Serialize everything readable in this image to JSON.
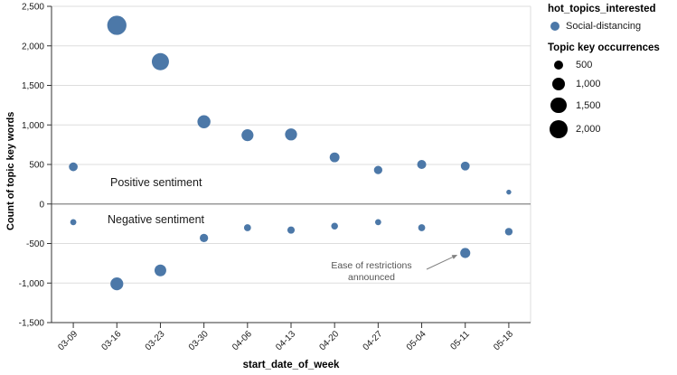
{
  "chart_data": {
    "type": "scatter",
    "title": "",
    "xlabel": "start_date_of_week",
    "ylabel": "Count of topic key words",
    "x": [
      "03-09",
      "03-16",
      "03-23",
      "03-30",
      "04-06",
      "04-13",
      "04-20",
      "04-27",
      "05-04",
      "05-11",
      "05-18"
    ],
    "series": [
      {
        "name": "Social-distancing positive sentiment",
        "values": [
          470,
          2260,
          1800,
          1040,
          870,
          880,
          590,
          430,
          500,
          480,
          150
        ]
      },
      {
        "name": "Social-distancing negative sentiment",
        "values": [
          -230,
          -1010,
          -840,
          -430,
          -300,
          -330,
          -280,
          -230,
          -300,
          -620,
          -350
        ]
      }
    ],
    "size_encoding": {
      "title": "Topic key occurrences",
      "max_value": 2000,
      "max_radius_px": 10
    },
    "ylim": [
      -1500,
      2500
    ],
    "y_ticks": [
      {
        "label": "2,500",
        "value": 2500
      },
      {
        "label": "2,000",
        "value": 2000
      },
      {
        "label": "1,500",
        "value": 1500
      },
      {
        "label": "1,000",
        "value": 1000
      },
      {
        "label": "500",
        "value": 500
      },
      {
        "label": "0",
        "value": 0
      },
      {
        "label": "-500",
        "value": -500
      },
      {
        "label": "-1,000",
        "value": -1000
      },
      {
        "label": "-1,500",
        "value": -1500
      }
    ],
    "grid": true,
    "zero_line": true,
    "legend_position": "right",
    "labels": {
      "positive": "Positive sentiment",
      "negative": "Negative sentiment"
    },
    "annotation": {
      "lines": [
        "Ease of restrictions",
        "announced"
      ],
      "target_date": "05-11",
      "target_series": 1
    },
    "colors": {
      "bubble": "#4C78A8",
      "grid": "#dddddd",
      "zero_line": "#888888",
      "axis": "#333333",
      "tick_text": "#1a1a1a",
      "annotation": "#808080"
    }
  },
  "legend": {
    "color_title": "hot_topics_interested",
    "color_items": [
      {
        "label": "Social-distancing",
        "color": "#4C78A8"
      }
    ],
    "size_title": "Topic key occurrences",
    "size_items": [
      {
        "label": "500",
        "value": 500
      },
      {
        "label": "1,000",
        "value": 1000
      },
      {
        "label": "1,500",
        "value": 1500
      },
      {
        "label": "2,000",
        "value": 2000
      }
    ]
  }
}
